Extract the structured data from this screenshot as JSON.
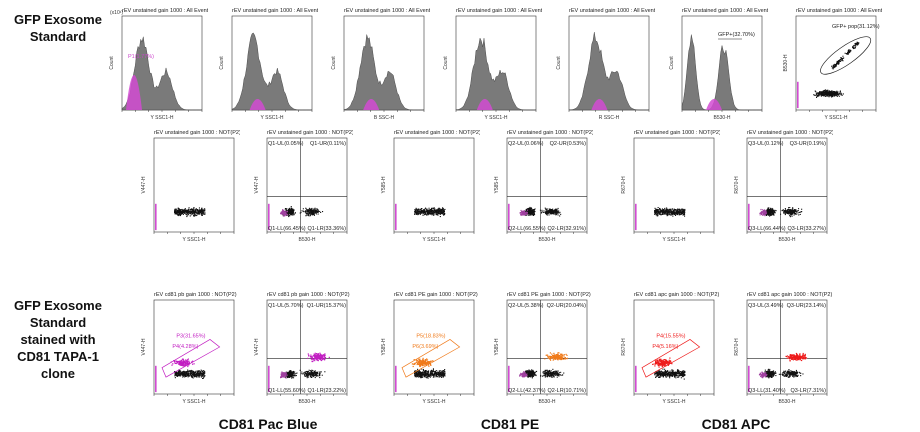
{
  "labels": {
    "row1": [
      "GFP Exosome",
      "Standard"
    ],
    "row3": [
      "GFP Exosome",
      "Standard",
      "stained with",
      "CD81 TAPA-1 clone"
    ]
  },
  "footers": [
    "CD81 Pac Blue",
    "CD81 PE",
    "CD81 APC"
  ],
  "row1": [
    {
      "title": "rEV unstained gain 1000 : All Events",
      "xlabel": "Y SSC1-H",
      "ylabel": "Count",
      "exp": "(x10¹)",
      "gate": "P1(1.77%)",
      "gatecolor": "#cc44cc"
    },
    {
      "title": "rEV unstained gain 1000 : All Events",
      "xlabel": "Y SSC1-H",
      "ylabel": "Count"
    },
    {
      "title": "rEV unstained gain 1000 : All Events",
      "xlabel": "B SSC-H",
      "ylabel": "Count"
    },
    {
      "title": "rEV unstained gain 1000 : All Events",
      "xlabel": "Y SSC1-H",
      "ylabel": "Count"
    },
    {
      "title": "rEV unstained gain 1000 : All Events",
      "xlabel": "R SSC-H",
      "ylabel": "Count"
    },
    {
      "title": "rEV unstained gain 1000 : All Events",
      "xlabel": "B530-H",
      "ylabel": "Count",
      "gate": "GFP+(32.70%)",
      "gatecolor": "#222"
    },
    {
      "title": "rEV unstained gain 1000 : All Events",
      "xlabel": "Y SSC1-H",
      "ylabel": "B530-H",
      "gate": "GFP+ pop(31.12%)",
      "gatecolor": "#222"
    }
  ],
  "row2": [
    {
      "title": "rEV unstained gain 1000 : NOT(P2)",
      "xlabel": "Y SSC1-H",
      "ylabel": "V447-H"
    },
    {
      "title": "rEV unstained gain 1000 : NOT(P2)",
      "xlabel": "B530-H",
      "ylabel": "V447-H",
      "q": [
        "Q1-UL(0.05%)",
        "Q1-UR(0.11%)",
        "Q1-LL(66.45%)",
        "Q1-LR(33.36%)"
      ]
    },
    {
      "title": "rEV unstained gain 1000 : NOT(P2)",
      "xlabel": "Y SSC1-H",
      "ylabel": "Y585-H"
    },
    {
      "title": "rEV unstained gain 1000 : NOT(P2)",
      "xlabel": "B530-H",
      "ylabel": "Y585-H",
      "q": [
        "Q2-UL(0.06%)",
        "Q2-UR(0.53%)",
        "Q2-LL(66.55%)",
        "Q2-LR(32.91%)"
      ]
    },
    {
      "title": "rEV unstained gain 1000 : NOT(P2)",
      "xlabel": "Y SSC1-H",
      "ylabel": "R670-H"
    },
    {
      "title": "rEV unstained gain 1000 : NOT(P2)",
      "xlabel": "B530-H",
      "ylabel": "R670-H",
      "q": [
        "Q3-UL(0.12%)",
        "Q3-UR(0.19%)",
        "Q3-LL(66.44%)",
        "Q3-LR(33.27%)"
      ]
    }
  ],
  "row3": [
    {
      "title": "rEV cd81 pb gain 1000 : NOT(P2)",
      "xlabel": "Y SSC1-H",
      "ylabel": "V447-H",
      "accent": "#c21ec2",
      "gates": [
        "P3(31.65%)",
        "P4(4.28%)"
      ]
    },
    {
      "title": "rEV cd81 pb gain 1000 : NOT(P2)",
      "xlabel": "B530-H",
      "ylabel": "V447-H",
      "accent": "#c21ec2",
      "q": [
        "Q1-UL(5.70%)",
        "Q1-UR(15.37%)",
        "Q1-LL(55.60%)",
        "Q1-LR(23.22%)"
      ]
    },
    {
      "title": "rEV cd81 PE gain 1000 : NOT(P2)",
      "xlabel": "Y SSC1-H",
      "ylabel": "Y585-H",
      "accent": "#f07a1a",
      "gates": [
        "P5(18.83%)",
        "P6(3.69%)"
      ]
    },
    {
      "title": "rEV cd81 PE gain 1000 : NOT(P2)",
      "xlabel": "B530-H",
      "ylabel": "Y585-H",
      "accent": "#f07a1a",
      "q": [
        "Q2-UL(5.38%)",
        "Q2-UR(20.04%)",
        "Q2-LL(42.37%)",
        "Q2-LR(10.71%)"
      ]
    },
    {
      "title": "rEV cd81 apc gain 1000 : NOT(P2)",
      "xlabel": "Y SSC1-H",
      "ylabel": "R670-H",
      "accent": "#ee1b1b",
      "gates": [
        "P4(15.55%)",
        "P4(5.16%)"
      ]
    },
    {
      "title": "rEV cd81 apc gain 1000 : NOT(P2)",
      "xlabel": "B530-H",
      "ylabel": "R670-H",
      "accent": "#ee1b1b",
      "q": [
        "Q3-UL(3.49%)",
        "Q3-UR(23.14%)",
        "Q3-LL(31.40%)",
        "Q3-LR(7.31%)"
      ]
    }
  ]
}
